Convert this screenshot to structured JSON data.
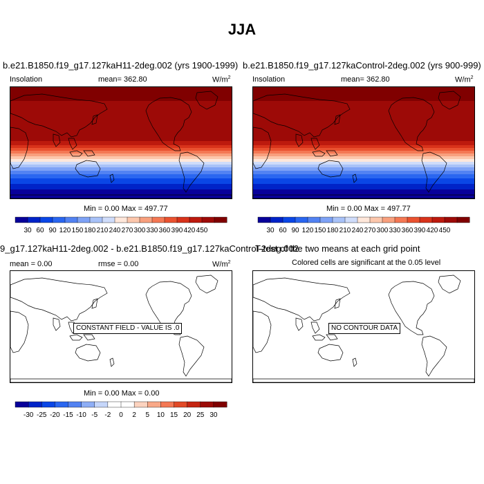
{
  "page": {
    "title": "JJA",
    "colormaps": {
      "clim": [
        "#08009a",
        "#0023c8",
        "#0a46e6",
        "#2a66f0",
        "#5282f2",
        "#7ea2f6",
        "#a8c2f8",
        "#cfdcfa",
        "#ffe7da",
        "#fcc7ac",
        "#f8a07e",
        "#f47854",
        "#ea5230",
        "#d8331b",
        "#bd1a0e",
        "#9d0a07",
        "#800000"
      ],
      "diff": [
        "#08009a",
        "#0023c8",
        "#0a46e6",
        "#2a66f0",
        "#5282f2",
        "#8eaef6",
        "#c5d6fa",
        "#ffffff",
        "#ffffff",
        "#fcd3bf",
        "#f9a888",
        "#f47854",
        "#e24a27",
        "#c52512",
        "#9b0b07",
        "#800000"
      ]
    },
    "panels": {
      "case1": {
        "title": "b.e21.B1850.f19_g17.127kaH11-2deg.002 (yrs 1900-1999)",
        "var_label": "Insolation",
        "mean_label": "mean= 362.80",
        "units": "W/m",
        "units_sup": "2",
        "minmax": "Min =  0.00 Max = 497.77",
        "colorbar_labels": [
          "30",
          "60",
          "90",
          "120",
          "150",
          "180",
          "210",
          "240",
          "270",
          "300",
          "330",
          "360",
          "390",
          "420",
          "450"
        ]
      },
      "case2": {
        "title": "b.e21.B1850.f19_g17.127kaControl-2deg.002 (yrs 900-999)",
        "var_label": "Insolation",
        "mean_label": "mean= 362.80",
        "units": "W/m",
        "units_sup": "2",
        "minmax": "Min =  0.00 Max = 497.77",
        "colorbar_labels": [
          "30",
          "60",
          "90",
          "120",
          "150",
          "180",
          "210",
          "240",
          "270",
          "300",
          "330",
          "360",
          "390",
          "420",
          "450"
        ]
      },
      "diff": {
        "title": "9_g17.127kaH11-2deg.002 - b.e21.B1850.f19_g17.127kaControl-2deg.002",
        "mean_label": "mean =   0.00",
        "rmse_label": "rmse =   0.00",
        "units": "W/m",
        "units_sup": "2",
        "message": "CONSTANT FIELD - VALUE IS .0",
        "minmax": "Min =   0.00 Max =   0.00",
        "colorbar_labels": [
          "-30",
          "-25",
          "-20",
          "-15",
          "-10",
          "-5",
          "-2",
          "0",
          "2",
          "5",
          "10",
          "15",
          "20",
          "25",
          "30"
        ]
      },
      "ttest": {
        "title": "T-test of the two means at each grid point",
        "subtitle": "Colored cells are significant at the 0.05 level",
        "message": "NO CONTOUR DATA"
      }
    }
  }
}
